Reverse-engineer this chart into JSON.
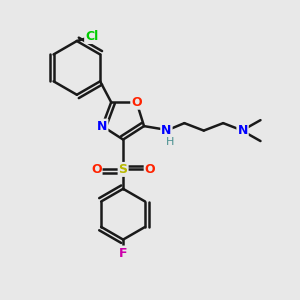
{
  "background_color": "#e8e8e8",
  "bond_color": "#1a1a1a",
  "bond_width": 1.8,
  "figsize": [
    3.0,
    3.0
  ],
  "dpi": 100,
  "atoms": {
    "Cl": {
      "color": "#00cc00",
      "fontsize": 9,
      "fontweight": "bold"
    },
    "O": {
      "color": "#ff2200",
      "fontsize": 9,
      "fontweight": "bold"
    },
    "N": {
      "color": "#0000ff",
      "fontsize": 9,
      "fontweight": "bold"
    },
    "S": {
      "color": "#b8b800",
      "fontsize": 9,
      "fontweight": "bold"
    },
    "F": {
      "color": "#cc00aa",
      "fontsize": 9,
      "fontweight": "bold"
    },
    "H": {
      "color": "#4a9090",
      "fontsize": 8,
      "fontweight": "normal"
    }
  }
}
